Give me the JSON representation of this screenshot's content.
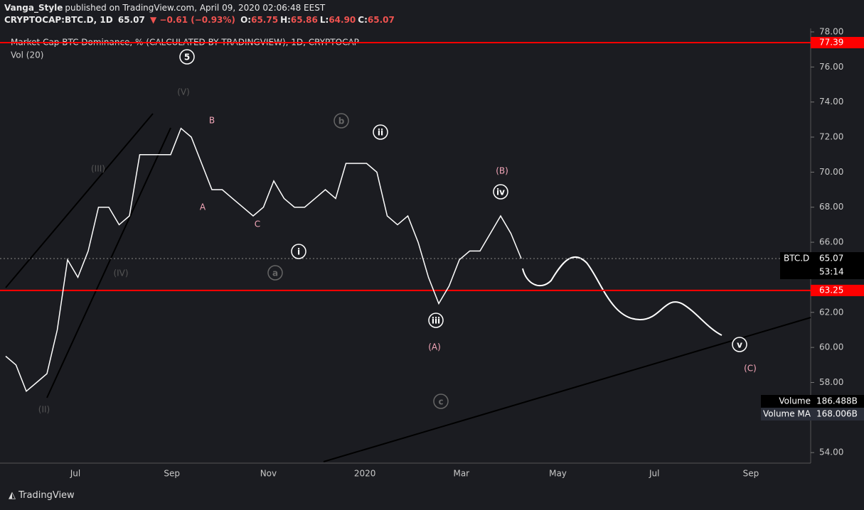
{
  "header": {
    "publisher": "Vanga_Style",
    "published": "published on TradingView.com, April 09, 2020 02:06:48 EEST",
    "symbol": "CRYPTOCAP:BTC.D, 1D",
    "last": "65.07",
    "change": "▼ −0.61 (−0.93%)",
    "ohlc": [
      [
        "O:",
        "65.75"
      ],
      [
        "H:",
        "65.86"
      ],
      [
        "L:",
        "64.90"
      ],
      [
        "C:",
        "65.07"
      ]
    ]
  },
  "chart_data": {
    "type": "line",
    "title": "Market Cap BTC Dominance, % (CALCULATED BY TRADINGVIEW), 1D, CRYPTOCAP",
    "subtitle": "Vol (20)",
    "values": [
      59.5,
      59,
      57.5,
      58,
      58.5,
      61,
      65,
      64,
      65.5,
      68,
      68,
      67,
      67.5,
      71,
      71,
      71,
      71,
      72.5,
      72,
      70.5,
      69,
      69,
      68.5,
      68,
      67.5,
      68,
      69.5,
      68.5,
      68,
      68,
      68.5,
      69,
      68.5,
      70.5,
      70.5,
      70.5,
      70,
      67.5,
      67,
      67.5,
      66,
      64,
      62.5,
      63.5,
      65,
      65.5,
      65.5,
      66.5,
      67.5,
      66.5,
      65.07
    ],
    "color": "#ffffff",
    "ylim": [
      53.4,
      78.2
    ],
    "yticks": [
      {
        "value": 54,
        "label": "54.00"
      },
      {
        "value": 56,
        "label": "56.00"
      },
      {
        "value": 58,
        "label": "58.00"
      },
      {
        "value": 60,
        "label": "60.00"
      },
      {
        "value": 62,
        "label": "62.00"
      },
      {
        "value": 66,
        "label": "66.00"
      },
      {
        "value": 68,
        "label": "68.00"
      },
      {
        "value": 70,
        "label": "70.00"
      },
      {
        "value": 72,
        "label": "72.00"
      },
      {
        "value": 74,
        "label": "74.00"
      },
      {
        "value": 76,
        "label": "76.00"
      },
      {
        "value": 78,
        "label": "78.00"
      }
    ],
    "xtick_labels": [
      "Jul",
      "Sep",
      "Nov",
      "2020",
      "Mar",
      "May",
      "Jul",
      "Sep"
    ],
    "levels": [
      {
        "value": 77.39,
        "color": "#ff0000"
      },
      {
        "value": 63.25,
        "color": "#ff0000"
      }
    ],
    "last_price": {
      "name": "BTC.D",
      "value": 65.07,
      "countdown": "53:14"
    },
    "volume": [
      [
        "Volume",
        "186.488B"
      ],
      [
        "Volume MA",
        "168.006B"
      ]
    ],
    "annotations": [
      {
        "text": "5",
        "style": "circle-white"
      },
      {
        "text": "(V)",
        "style": "gray"
      },
      {
        "text": "B",
        "style": "pink"
      },
      {
        "text": "(III)",
        "style": "gray"
      },
      {
        "text": "A",
        "style": "pink"
      },
      {
        "text": "C",
        "style": "pink"
      },
      {
        "text": "(IV)",
        "style": "gray"
      },
      {
        "text": "(II)",
        "style": "gray"
      },
      {
        "text": "b",
        "style": "circle-gray"
      },
      {
        "text": "ii",
        "style": "circle-white"
      },
      {
        "text": "i",
        "style": "circle-white"
      },
      {
        "text": "a",
        "style": "circle-gray"
      },
      {
        "text": "(B)",
        "style": "pink"
      },
      {
        "text": "iv",
        "style": "circle-white"
      },
      {
        "text": "iii",
        "style": "circle-white"
      },
      {
        "text": "(A)",
        "style": "pink"
      },
      {
        "text": "c",
        "style": "circle-gray"
      },
      {
        "text": "v",
        "style": "circle-white"
      },
      {
        "text": "(C)",
        "style": "pink"
      }
    ]
  },
  "footer": "TradingView"
}
